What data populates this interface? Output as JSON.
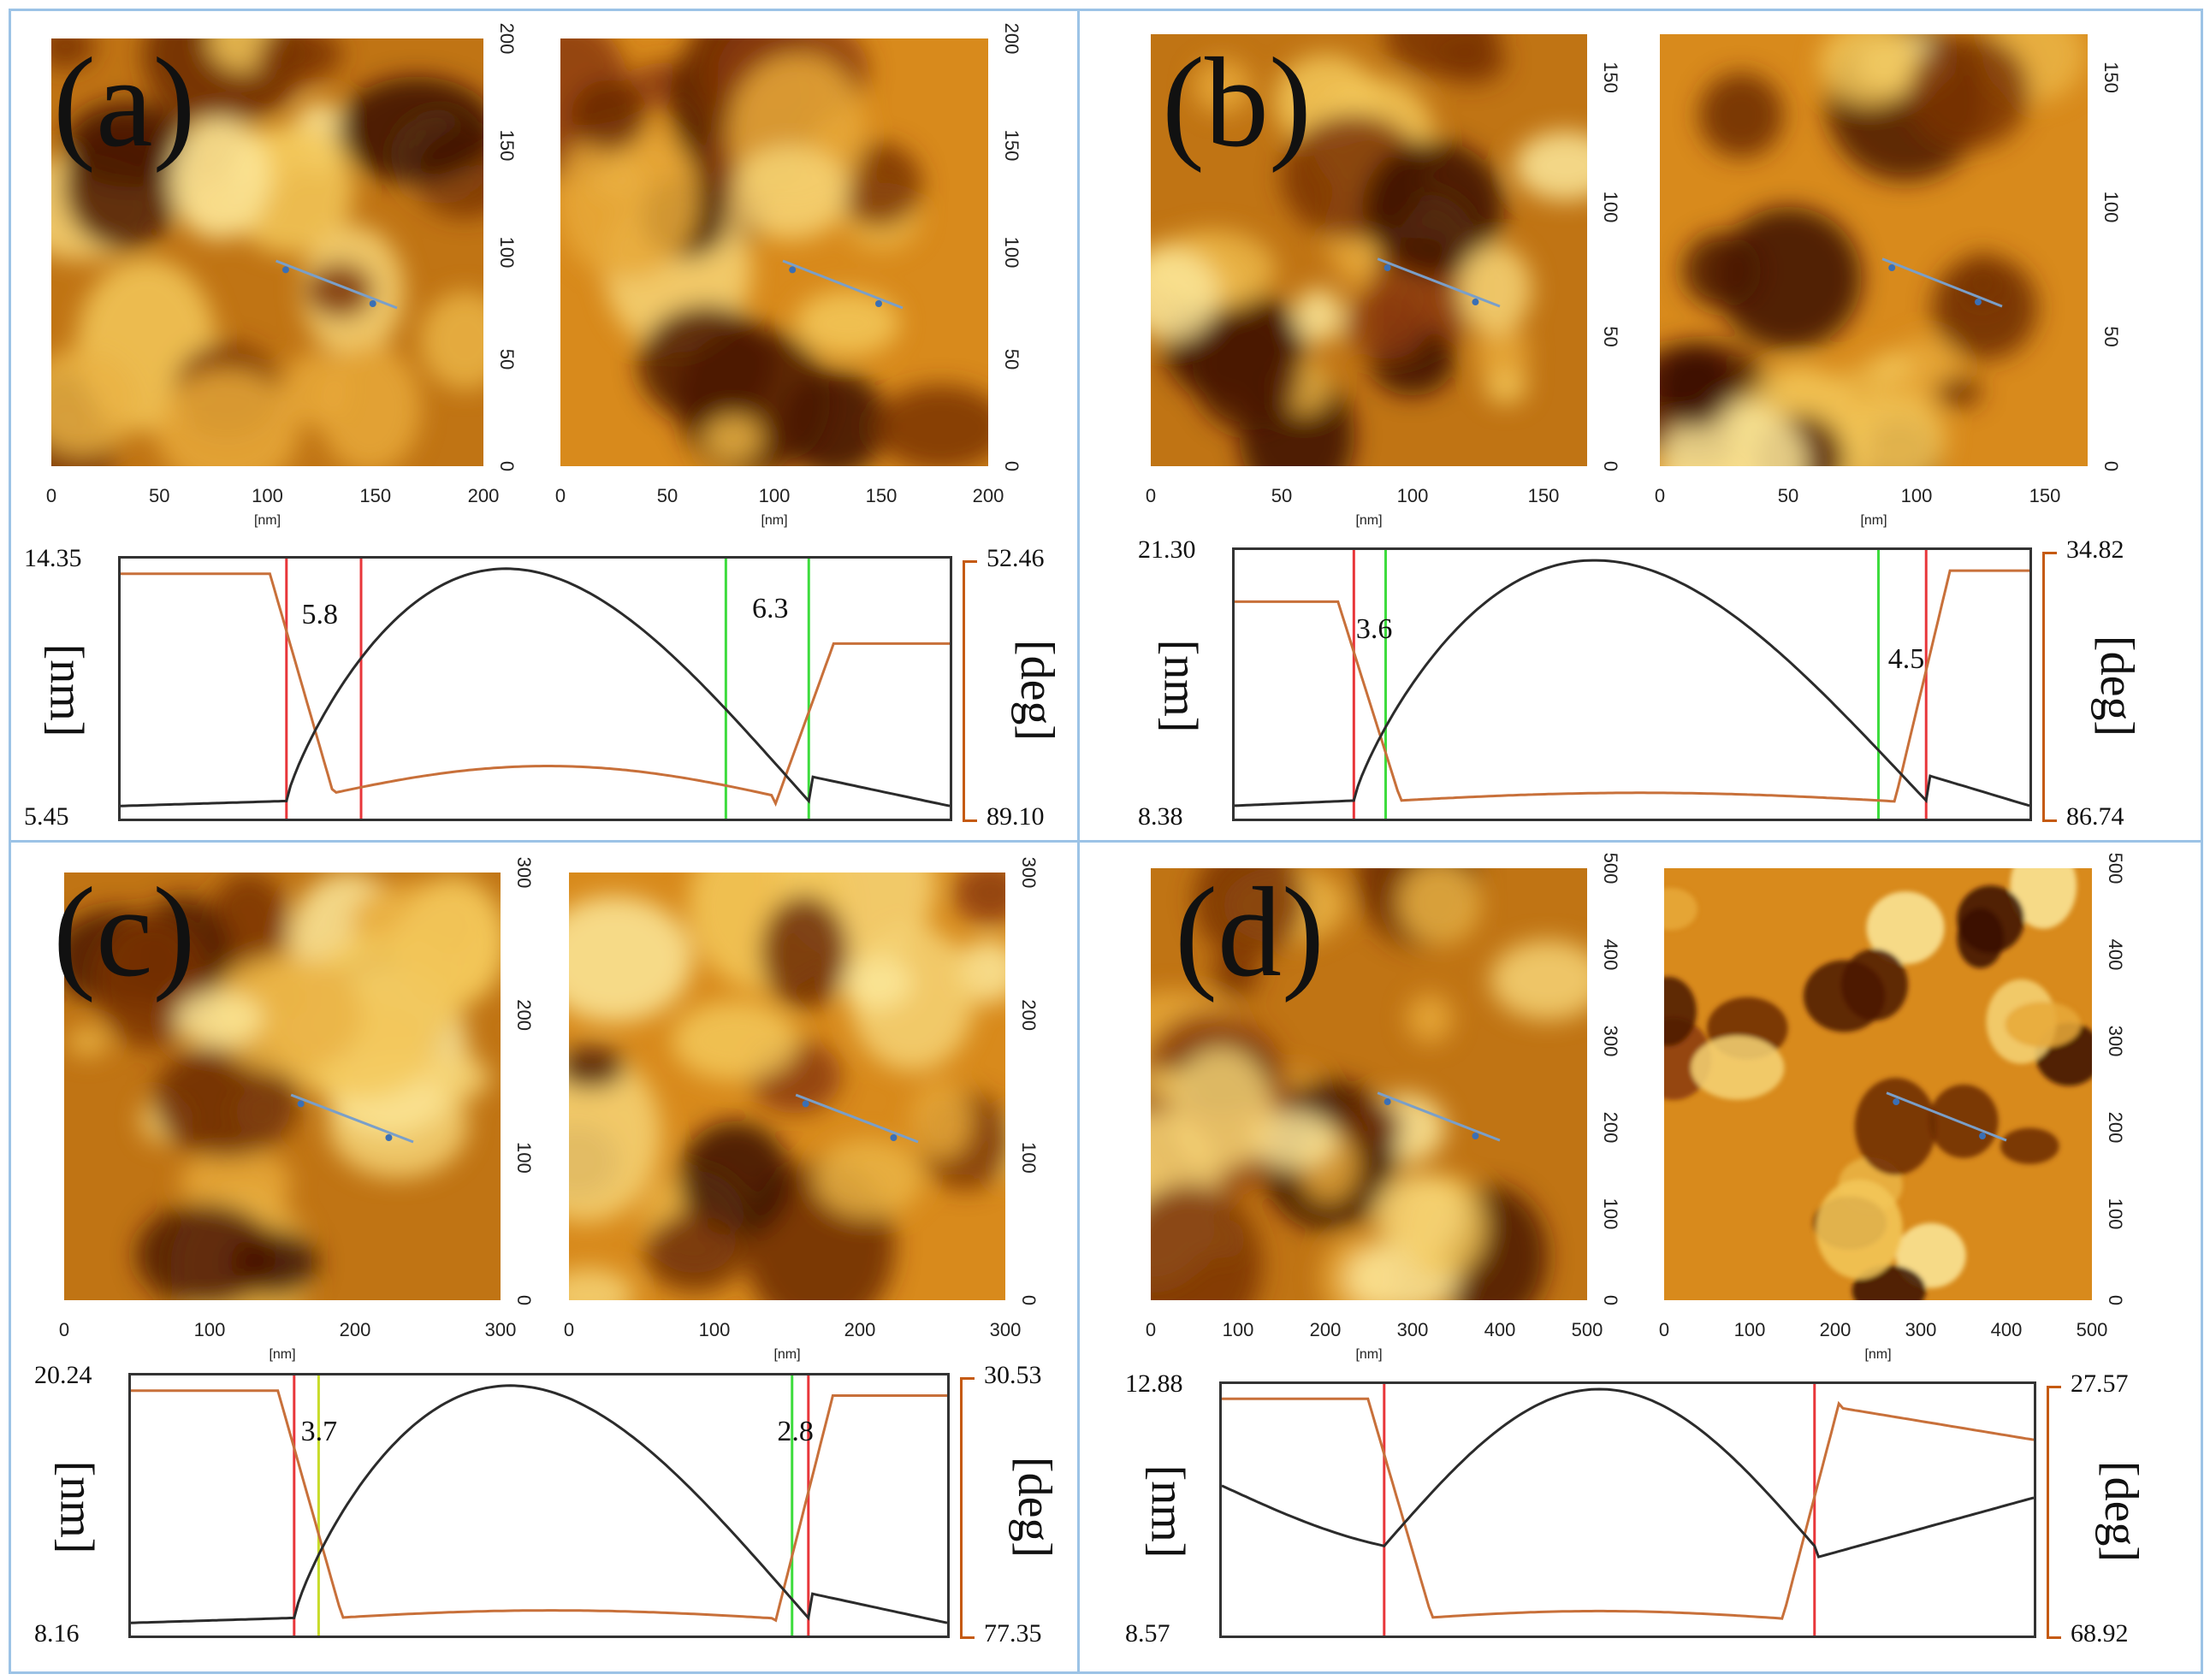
{
  "figure": {
    "panels": [
      {
        "id": "a",
        "label": "(a)",
        "image_ticks_x": [
          "0",
          "50",
          "100",
          "150",
          "200"
        ],
        "image_ticks_y": [
          "0",
          "50",
          "100",
          "150",
          "200"
        ],
        "image_unit": "[nm]",
        "profile": {
          "left_max": "14.35",
          "left_min": "5.45",
          "right_top": "52.46",
          "right_bottom": "89.10",
          "left_unit": "[nm]",
          "right_unit": "[deg]",
          "annotations": [
            "5.8",
            "6.3"
          ]
        }
      },
      {
        "id": "b",
        "label": "(b)",
        "image_ticks_x": [
          "0",
          "50",
          "100",
          "150"
        ],
        "image_ticks_y": [
          "0",
          "50",
          "100",
          "150"
        ],
        "image_unit": "[nm]",
        "profile": {
          "left_max": "21.30",
          "left_min": "8.38",
          "right_top": "34.82",
          "right_bottom": "86.74",
          "left_unit": "[nm]",
          "right_unit": "[deg]",
          "annotations": [
            "3.6",
            "4.5"
          ]
        }
      },
      {
        "id": "c",
        "label": "(c)",
        "image_ticks_x": [
          "0",
          "100",
          "200",
          "300"
        ],
        "image_ticks_y": [
          "0",
          "100",
          "200",
          "300"
        ],
        "image_unit": "[nm]",
        "profile": {
          "left_max": "20.24",
          "left_min": "8.16",
          "right_top": "30.53",
          "right_bottom": "77.35",
          "left_unit": "[nm]",
          "right_unit": "[deg]",
          "annotations": [
            "3.7",
            "2.8"
          ]
        }
      },
      {
        "id": "d",
        "label": "(d)",
        "image_ticks_x": [
          "0",
          "100",
          "200",
          "300",
          "400",
          "500"
        ],
        "image_ticks_y": [
          "0",
          "100",
          "200",
          "300",
          "400",
          "500"
        ],
        "image_unit": "[nm]",
        "profile": {
          "left_max": "12.88",
          "left_min": "8.57",
          "right_top": "27.57",
          "right_bottom": "68.92",
          "left_unit": "[nm]",
          "right_unit": "[deg]",
          "annotations": []
        }
      }
    ],
    "colors": {
      "height_trace": "#2b2b2b",
      "phase_trace": "#c8703a",
      "marker_red": "#e8363a",
      "marker_green": "#3ddc3d",
      "marker_yellow": "#c8dc2a",
      "frame_blue": "#9cc3e6"
    }
  }
}
